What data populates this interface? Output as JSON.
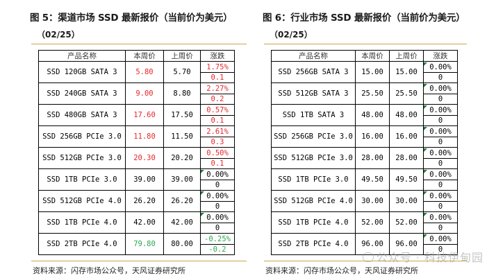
{
  "left": {
    "title": "图 5：渠道市场 SSD 最新报价（当前价为美元）",
    "subtitle": "（02/25）",
    "headers": [
      "产品名称",
      "本周价",
      "上周价",
      "涨跌"
    ],
    "rows": [
      {
        "name": "SSD 120GB SATA 3",
        "cur": "5.80",
        "prev": "5.70",
        "pct": "1.75%",
        "abs": "0.1",
        "trend": "up"
      },
      {
        "name": "SSD 240GB SATA 3",
        "cur": "9.00",
        "prev": "8.80",
        "pct": "2.27%",
        "abs": "0.2",
        "trend": "up"
      },
      {
        "name": "SSD 480GB SATA 3",
        "cur": "17.60",
        "prev": "17.50",
        "pct": "0.57%",
        "abs": "0.1",
        "trend": "up"
      },
      {
        "name": "SSD 256GB PCIe 3.0",
        "cur": "11.80",
        "prev": "11.50",
        "pct": "2.61%",
        "abs": "0.3",
        "trend": "up"
      },
      {
        "name": "SSD 512GB PCIe 3.0",
        "cur": "20.30",
        "prev": "20.20",
        "pct": "0.50%",
        "abs": "0.1",
        "trend": "up"
      },
      {
        "name": "SSD 1TB PCIe 3.0",
        "cur": "39.00",
        "prev": "39.00",
        "pct": "0.00%",
        "abs": "0",
        "trend": "flat"
      },
      {
        "name": "SSD 512GB PCIe 4.0",
        "cur": "26.20",
        "prev": "26.20",
        "pct": "0.00%",
        "abs": "0",
        "trend": "flat"
      },
      {
        "name": "SSD 1TB PCIe 4.0",
        "cur": "42.00",
        "prev": "42.00",
        "pct": "0.00%",
        "abs": "0",
        "trend": "flat"
      },
      {
        "name": "SSD 2TB PCIe 4.0",
        "cur": "79.80",
        "prev": "80.00",
        "pct": "-0.25%",
        "abs": "-0.2",
        "trend": "down"
      }
    ],
    "source": "资料来源：闪存市场公众号，天风证券研究所"
  },
  "right": {
    "title": "图 6：行业市场 SSD 最新报价（当前价为美元）",
    "subtitle": "（02/25）",
    "headers": [
      "产品名称",
      "本周价",
      "上周价",
      "涨跌"
    ],
    "rows": [
      {
        "name": "SSD 256GB SATA 3",
        "cur": "15.00",
        "prev": "15.00",
        "pct": "0.00%",
        "abs": "0",
        "trend": "flat"
      },
      {
        "name": "SSD 512GB SATA 3",
        "cur": "25.50",
        "prev": "25.50",
        "pct": "0.00%",
        "abs": "0",
        "trend": "flat"
      },
      {
        "name": "SSD 1TB SATA 3",
        "cur": "48.00",
        "prev": "48.00",
        "pct": "0.00%",
        "abs": "0",
        "trend": "flat"
      },
      {
        "name": "SSD 256GB PCIe 3.0",
        "cur": "16.00",
        "prev": "16.00",
        "pct": "0.00%",
        "abs": "0",
        "trend": "flat"
      },
      {
        "name": "SSD 512GB PCIe 3.0",
        "cur": "28.00",
        "prev": "28.00",
        "pct": "0.00%",
        "abs": "0",
        "trend": "flat"
      },
      {
        "name": "SSD 1TB PCIe 3.0",
        "cur": "49.50",
        "prev": "49.50",
        "pct": "0.00%",
        "abs": "0",
        "trend": "flat"
      },
      {
        "name": "SSD 512GB PCIe 4.0",
        "cur": "30.00",
        "prev": "30.00",
        "pct": "0.00%",
        "abs": "0",
        "trend": "flat"
      },
      {
        "name": "SSD 1TB PCIe 4.0",
        "cur": "52.00",
        "prev": "52.00",
        "pct": "0.00%",
        "abs": "0",
        "trend": "flat"
      },
      {
        "name": "SSD 2TB PCIe 4.0",
        "cur": "96.00",
        "prev": "96.00",
        "pct": "0.00%",
        "abs": "0",
        "trend": "flat"
      }
    ],
    "source": "资料来源：闪存市场公众号，天风证券研究所"
  },
  "watermark": "公众号 · 科技伊甸园",
  "colors": {
    "up": "#e8262b",
    "down": "#2aa84a",
    "rule": "#c9a64a",
    "flat_marker": "#1f7a3a"
  }
}
